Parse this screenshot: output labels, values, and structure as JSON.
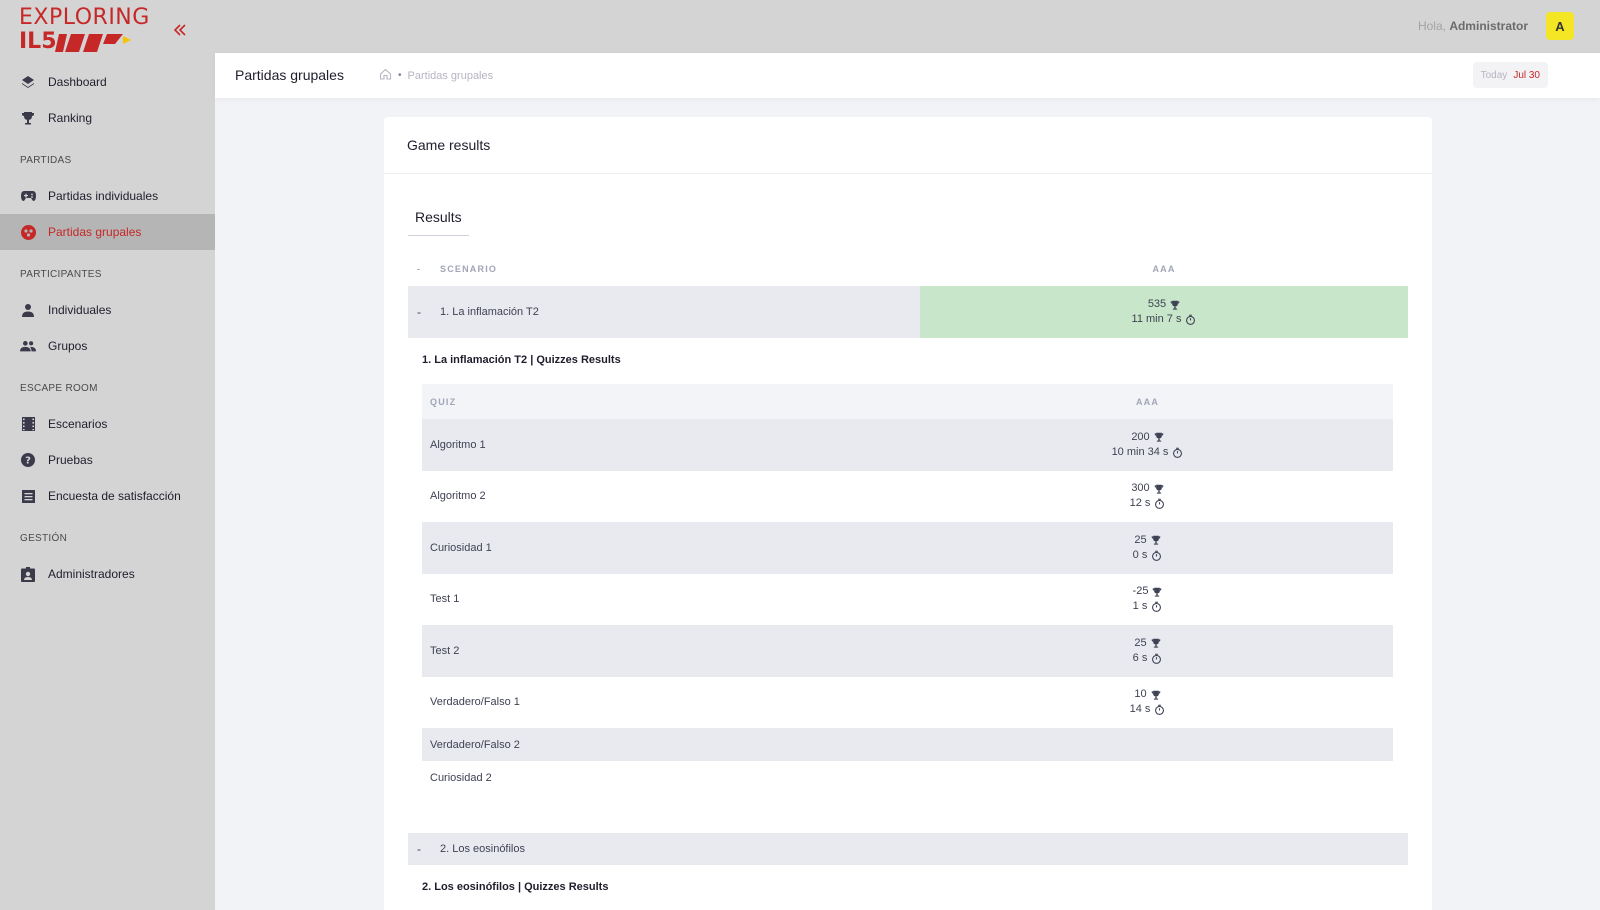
{
  "brand": {
    "line1": "EXPLORING",
    "line2": "IL5"
  },
  "sidebar": {
    "top_items": [
      {
        "label": "Dashboard",
        "icon": "layers-icon"
      },
      {
        "label": "Ranking",
        "icon": "trophy-icon"
      }
    ],
    "sections": [
      {
        "title": "PARTIDAS",
        "items": [
          {
            "label": "Partidas individuales",
            "icon": "gamepad-icon"
          },
          {
            "label": "Partidas grupales",
            "icon": "group-circle-icon",
            "active": true
          }
        ]
      },
      {
        "title": "PARTICIPANTES",
        "items": [
          {
            "label": "Individuales",
            "icon": "person-icon"
          },
          {
            "label": "Grupos",
            "icon": "people-icon"
          }
        ]
      },
      {
        "title": "ESCAPE ROOM",
        "items": [
          {
            "label": "Escenarios",
            "icon": "film-icon"
          },
          {
            "label": "Pruebas",
            "icon": "question-icon"
          },
          {
            "label": "Encuesta de satisfacción",
            "icon": "list-icon"
          }
        ]
      },
      {
        "title": "GESTIÓN",
        "items": [
          {
            "label": "Administradores",
            "icon": "badge-icon"
          }
        ]
      }
    ]
  },
  "header": {
    "greeting_prefix": "Hola,",
    "user_name": "Administrator",
    "avatar_letter": "A"
  },
  "subheader": {
    "title": "Partidas grupales",
    "breadcrumb_current": "Partidas grupales",
    "today_label": "Today",
    "today_date": "Jul 30"
  },
  "card": {
    "title": "Game results",
    "tab": "Results",
    "table_head": {
      "toggle": "-",
      "scenario": "SCENARIO",
      "team": "AAA"
    },
    "scenario1": {
      "toggle": "-",
      "name": "1. La inflamación T2",
      "points": "535",
      "time": "11 min 7 s",
      "quizzes_title": "1. La inflamación T2 | Quizzes Results",
      "quiz_head": {
        "quiz": "QUIZ",
        "team": "AAA"
      },
      "quizzes": [
        {
          "name": "Algoritmo 1",
          "points": "200",
          "time": "10 min 34 s"
        },
        {
          "name": "Algoritmo 2",
          "points": "300",
          "time": "12 s"
        },
        {
          "name": "Curiosidad 1",
          "points": "25",
          "time": "0 s"
        },
        {
          "name": "Test 1",
          "points": "-25",
          "time": "1 s"
        },
        {
          "name": "Test 2",
          "points": "25",
          "time": "6 s"
        },
        {
          "name": "Verdadero/Falso 1",
          "points": "10",
          "time": "14 s"
        },
        {
          "name": "Verdadero/Falso 2"
        },
        {
          "name": "Curiosidad 2"
        }
      ]
    },
    "scenario2": {
      "toggle": "-",
      "name": "2. Los eosinófilos",
      "quizzes_title": "2. Los eosinófilos | Quizzes Results"
    }
  }
}
